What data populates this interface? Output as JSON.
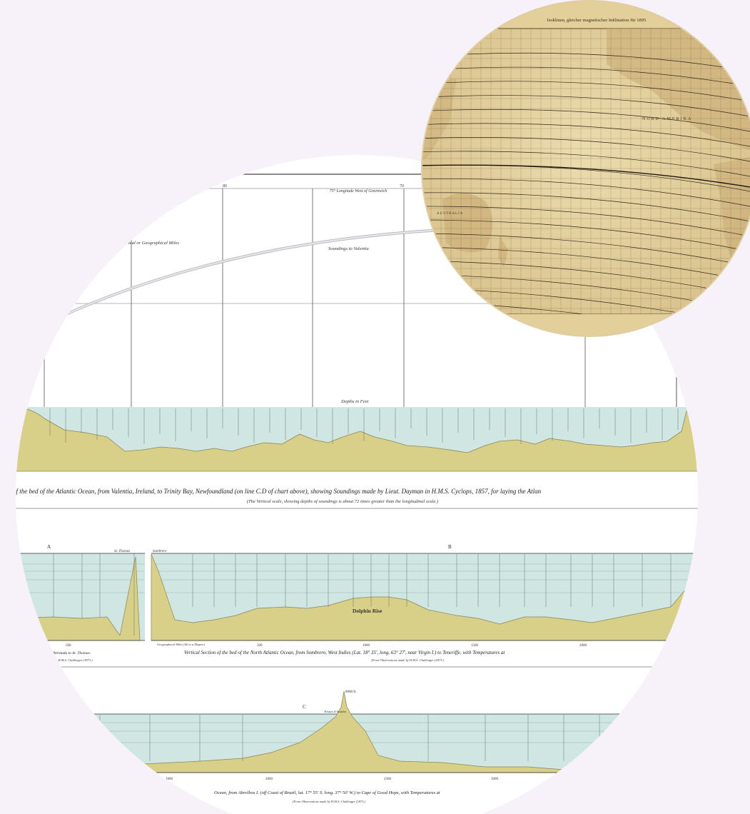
{
  "profile_panel": {
    "top_header": "75° Longitude West of Greenwich",
    "track_label_1": "ical or Geographical Miles",
    "track_label_2": "Soundings to Valentia",
    "depth_header": "Depths in Feet",
    "main_caption": "of the bed of the Atlantic Ocean, from Valentia, Ireland, to Trinity Bay, Newfoundland (on line C.D of chart above), showing Soundings made by Lieut. Dayman in H.M.S. Cyclops, 1857, for laying the Atlan",
    "main_subcaption": "(The Vertical scale, showing depths of soundings is about 72 times greater than the longitudinal scale.)",
    "section_a": {
      "letter": "A",
      "end_label": "St. Thomas",
      "caption_1": "tlantic Ocean, from Bermuda to St. Thomas.",
      "caption_2": "Observations made by H.M.S. Challenger (1873.)",
      "x_tick": "500"
    },
    "section_b": {
      "letter": "B",
      "start_label": "Sombrero",
      "feature": "Dolphin Rise",
      "scale_note": "Geographical Miles (60 to a Degree)",
      "caption_1": "Vertical Section of the bed of the North Atlantic Ocean, from Sombrero, West Indies (Lat. 18° 35', long. 63° 27', near Virgin I.) to Teneriffe, with Temperatures at",
      "caption_2": "(From Observations made by H.M.S. Challenger (1873.)",
      "x_ticks": [
        "500",
        "1000",
        "1500",
        "2000"
      ]
    },
    "section_c": {
      "letter": "C",
      "peak_label": "8000 ft.",
      "island_label": "Tristan d'Acunha",
      "caption_1": "Ocean, from Abrolhos I. (off Coast of Brazil, lat. 17° 55' S. long. 37° 50' W.) to Cape of Good Hope, with Temperatures at",
      "caption_2": "(From Observations made by H.M.S. Challenger (1873.)",
      "x_ticks": [
        "1000",
        "2000",
        "2500",
        "3000"
      ]
    }
  },
  "inclination_map": {
    "title": "Isoklinen, gleicher magnetischer Inklination für 1895",
    "region_labels": [
      "NORD AMERIKA",
      "AUSTRALIA"
    ]
  },
  "colors": {
    "water": "#cfe6e3",
    "seabed": "#d8d089",
    "seabed_stroke": "#8c8450",
    "parchment": "#e7d4a3",
    "page_background": "#f7f1fa"
  }
}
